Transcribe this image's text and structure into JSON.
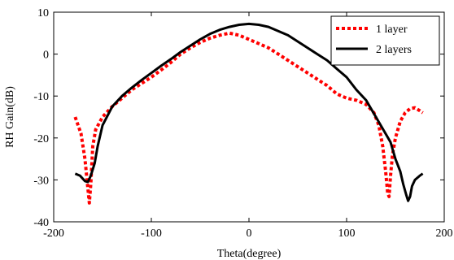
{
  "chart_data": {
    "type": "line",
    "xlabel": "Theta(degree)",
    "ylabel": "RH Gain(dB)",
    "xlim": [
      -200,
      200
    ],
    "ylim": [
      -40,
      10
    ],
    "xticks": [
      -200,
      -100,
      0,
      100,
      200
    ],
    "yticks": [
      -40,
      -30,
      -20,
      -10,
      0,
      10
    ],
    "grid": false,
    "legend_position": "top-right",
    "series": [
      {
        "name": "1 layer",
        "color": "#ff0000",
        "line_style": "dotted",
        "x": [
          -178,
          -172,
          -168,
          -165,
          -163.5,
          -162,
          -160,
          -157,
          -150,
          -140,
          -130,
          -120,
          -110,
          -100,
          -90,
          -80,
          -70,
          -60,
          -50,
          -40,
          -30,
          -20,
          -10,
          0,
          10,
          20,
          30,
          40,
          50,
          60,
          70,
          80,
          90,
          100,
          110,
          120,
          128,
          133,
          137,
          140,
          142,
          143.5,
          145,
          147,
          150,
          155,
          160,
          165,
          170,
          175,
          178
        ],
        "y": [
          -15,
          -19,
          -25,
          -32,
          -35.5,
          -31,
          -22,
          -18,
          -15,
          -12.5,
          -10.5,
          -8.5,
          -7,
          -5.5,
          -3.8,
          -2,
          0,
          1.5,
          2.8,
          3.8,
          4.5,
          5,
          4.5,
          3.5,
          2.5,
          1.5,
          0,
          -1.5,
          -3,
          -4.5,
          -6,
          -7.5,
          -9.5,
          -10.5,
          -11,
          -12,
          -14,
          -17,
          -22,
          -28,
          -33,
          -34,
          -29,
          -24,
          -20,
          -16,
          -14,
          -13,
          -12.8,
          -13.5,
          -14
        ]
      },
      {
        "name": "2 layers",
        "color": "#000000",
        "line_style": "solid",
        "x": [
          -178,
          -173,
          -168,
          -165,
          -162,
          -158,
          -155,
          -150,
          -140,
          -130,
          -120,
          -110,
          -100,
          -90,
          -80,
          -70,
          -60,
          -50,
          -40,
          -30,
          -20,
          -10,
          0,
          10,
          20,
          30,
          40,
          50,
          60,
          70,
          80,
          90,
          100,
          110,
          120,
          130,
          140,
          145,
          150,
          155,
          158,
          161,
          163,
          165,
          167,
          170,
          175,
          178
        ],
        "y": [
          -28.5,
          -29,
          -30.3,
          -30.5,
          -29,
          -26,
          -22,
          -17,
          -12.5,
          -10,
          -8,
          -6.2,
          -4.5,
          -2.8,
          -1.2,
          0.5,
          2,
          3.5,
          4.8,
          5.8,
          6.5,
          7,
          7.2,
          7,
          6.5,
          5.5,
          4.5,
          3,
          1.5,
          0,
          -1.5,
          -3.5,
          -5.5,
          -8.5,
          -11,
          -15,
          -19,
          -21,
          -25,
          -28,
          -31,
          -33.5,
          -35,
          -34,
          -31.5,
          -30,
          -29,
          -28.5
        ]
      }
    ]
  }
}
